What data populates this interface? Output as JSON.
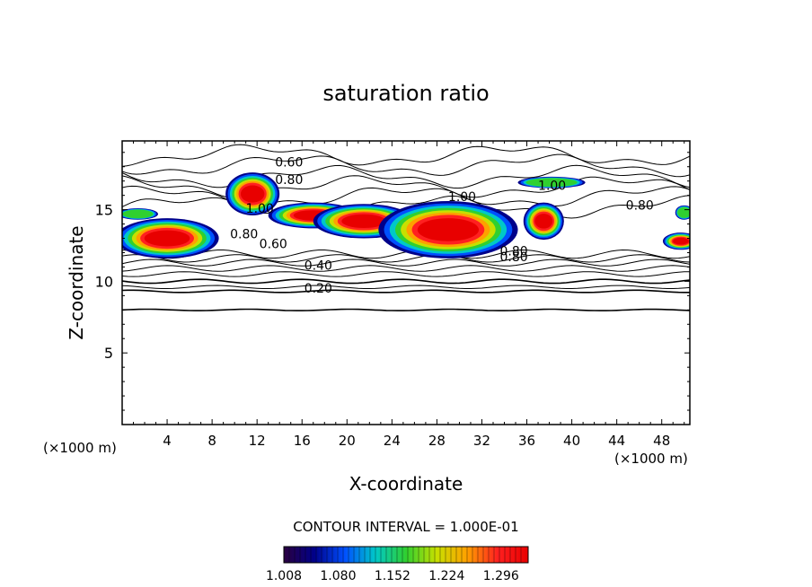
{
  "chart_data": {
    "type": "heatmap",
    "title": "saturation ratio",
    "xlabel": "X-coordinate",
    "ylabel": "Z-coordinate",
    "x_unit": "(×1000 m)",
    "y_unit": "(×1000 m)",
    "xlim": [
      0,
      50.5
    ],
    "ylim": [
      0,
      19.8
    ],
    "x_ticks": [
      4,
      8,
      12,
      16,
      20,
      24,
      28,
      32,
      36,
      40,
      44,
      48
    ],
    "y_ticks": [
      5,
      10,
      15
    ],
    "contour_interval_text": "CONTOUR INTERVAL = 1.000E-01",
    "colorbar": {
      "min": 1.008,
      "max": 1.332,
      "tick_values": [
        "1.008",
        "1.080",
        "1.152",
        "1.224",
        "1.296"
      ],
      "colors": [
        "#2a0040",
        "#00008a",
        "#0050ff",
        "#00c8c8",
        "#30d030",
        "#c8e000",
        "#ffa000",
        "#ff2020",
        "#e80000"
      ]
    },
    "contour_labels": [
      {
        "text": "0.60",
        "x": 13.6,
        "y": 18.0
      },
      {
        "text": "0.80",
        "x": 13.6,
        "y": 16.8
      },
      {
        "text": "1.00",
        "x": 11.0,
        "y": 14.8
      },
      {
        "text": "0.80",
        "x": 9.6,
        "y": 13.0
      },
      {
        "text": "0.60",
        "x": 12.2,
        "y": 12.3
      },
      {
        "text": "0.40",
        "x": 16.2,
        "y": 10.8
      },
      {
        "text": "0.20",
        "x": 16.2,
        "y": 9.2
      },
      {
        "text": "1.00",
        "x": 29.0,
        "y": 15.6
      },
      {
        "text": "1.00",
        "x": 37.0,
        "y": 16.4
      },
      {
        "text": "0.80",
        "x": 44.8,
        "y": 15.0
      },
      {
        "text": "0.80",
        "x": 33.6,
        "y": 11.8
      },
      {
        "text": "0.80",
        "x": 33.6,
        "y": 11.4
      }
    ],
    "saturated_regions": [
      {
        "cx": 4.0,
        "cy": 13.0,
        "rx": 4.6,
        "ry": 1.4,
        "peak": 1.3
      },
      {
        "cx": 11.6,
        "cy": 16.1,
        "rx": 2.4,
        "ry": 1.5,
        "peak": 1.3
      },
      {
        "cx": 17.0,
        "cy": 14.6,
        "rx": 4.0,
        "ry": 0.9,
        "peak": 1.25
      },
      {
        "cx": 21.5,
        "cy": 14.2,
        "rx": 4.5,
        "ry": 1.2,
        "peak": 1.27
      },
      {
        "cx": 29.0,
        "cy": 13.6,
        "rx": 6.2,
        "ry": 2.0,
        "peak": 1.3
      },
      {
        "cx": 37.5,
        "cy": 14.2,
        "rx": 1.8,
        "ry": 1.3,
        "peak": 1.28
      },
      {
        "cx": 38.2,
        "cy": 16.9,
        "rx": 3.0,
        "ry": 0.4,
        "peak": 1.1
      },
      {
        "cx": 49.7,
        "cy": 12.8,
        "rx": 1.6,
        "ry": 0.6,
        "peak": 1.3
      },
      {
        "cx": 1.4,
        "cy": 14.7,
        "rx": 1.8,
        "ry": 0.4,
        "peak": 1.1
      },
      {
        "cx": 50.0,
        "cy": 14.8,
        "rx": 0.8,
        "ry": 0.5,
        "peak": 1.1
      }
    ],
    "contour_lines_z": [
      8.0,
      9.3,
      9.6,
      10.0,
      10.5,
      10.9,
      11.3,
      11.6,
      11.9
    ],
    "grid": false,
    "legend": "bottom-center"
  }
}
